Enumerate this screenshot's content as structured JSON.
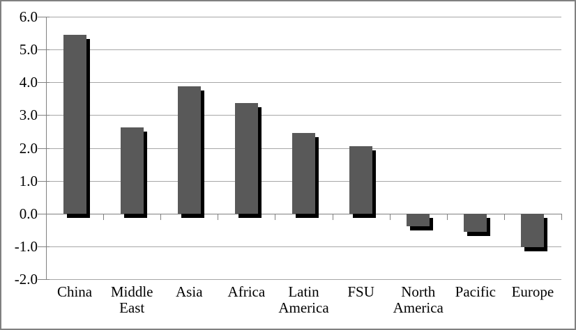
{
  "chart_data": {
    "type": "bar",
    "title": "",
    "xlabel": "",
    "ylabel": "",
    "categories": [
      "China",
      "Middle East",
      "Asia",
      "Africa",
      "Latin America",
      "FSU",
      "North America",
      "Pacific",
      "Europe"
    ],
    "category_label_lines": [
      [
        "China"
      ],
      [
        "Middle",
        "East"
      ],
      [
        "Asia"
      ],
      [
        "Africa"
      ],
      [
        "Latin",
        "America"
      ],
      [
        "FSU"
      ],
      [
        "North",
        "America"
      ],
      [
        "Pacific"
      ],
      [
        "Europe"
      ]
    ],
    "values": [
      5.45,
      2.63,
      3.88,
      3.37,
      2.45,
      2.05,
      -0.38,
      -0.55,
      -1.03
    ],
    "ylim": [
      -2.0,
      6.0
    ],
    "ytick_interval": 1.0,
    "ytick_labels": [
      "6.0",
      "5.0",
      "4.0",
      "3.0",
      "2.0",
      "1.0",
      "0.0",
      "-1.0",
      "-2.0"
    ],
    "grid": true,
    "legend_position": "none",
    "bar_style": "solid with offset drop shadow",
    "colors": {
      "bar_fill": "#595959",
      "bar_shadow": "#000000",
      "gridline": "#a6a6a6",
      "axis": "#808080",
      "chart_border": "#808080",
      "background": "#ffffff",
      "text": "#000000"
    }
  }
}
